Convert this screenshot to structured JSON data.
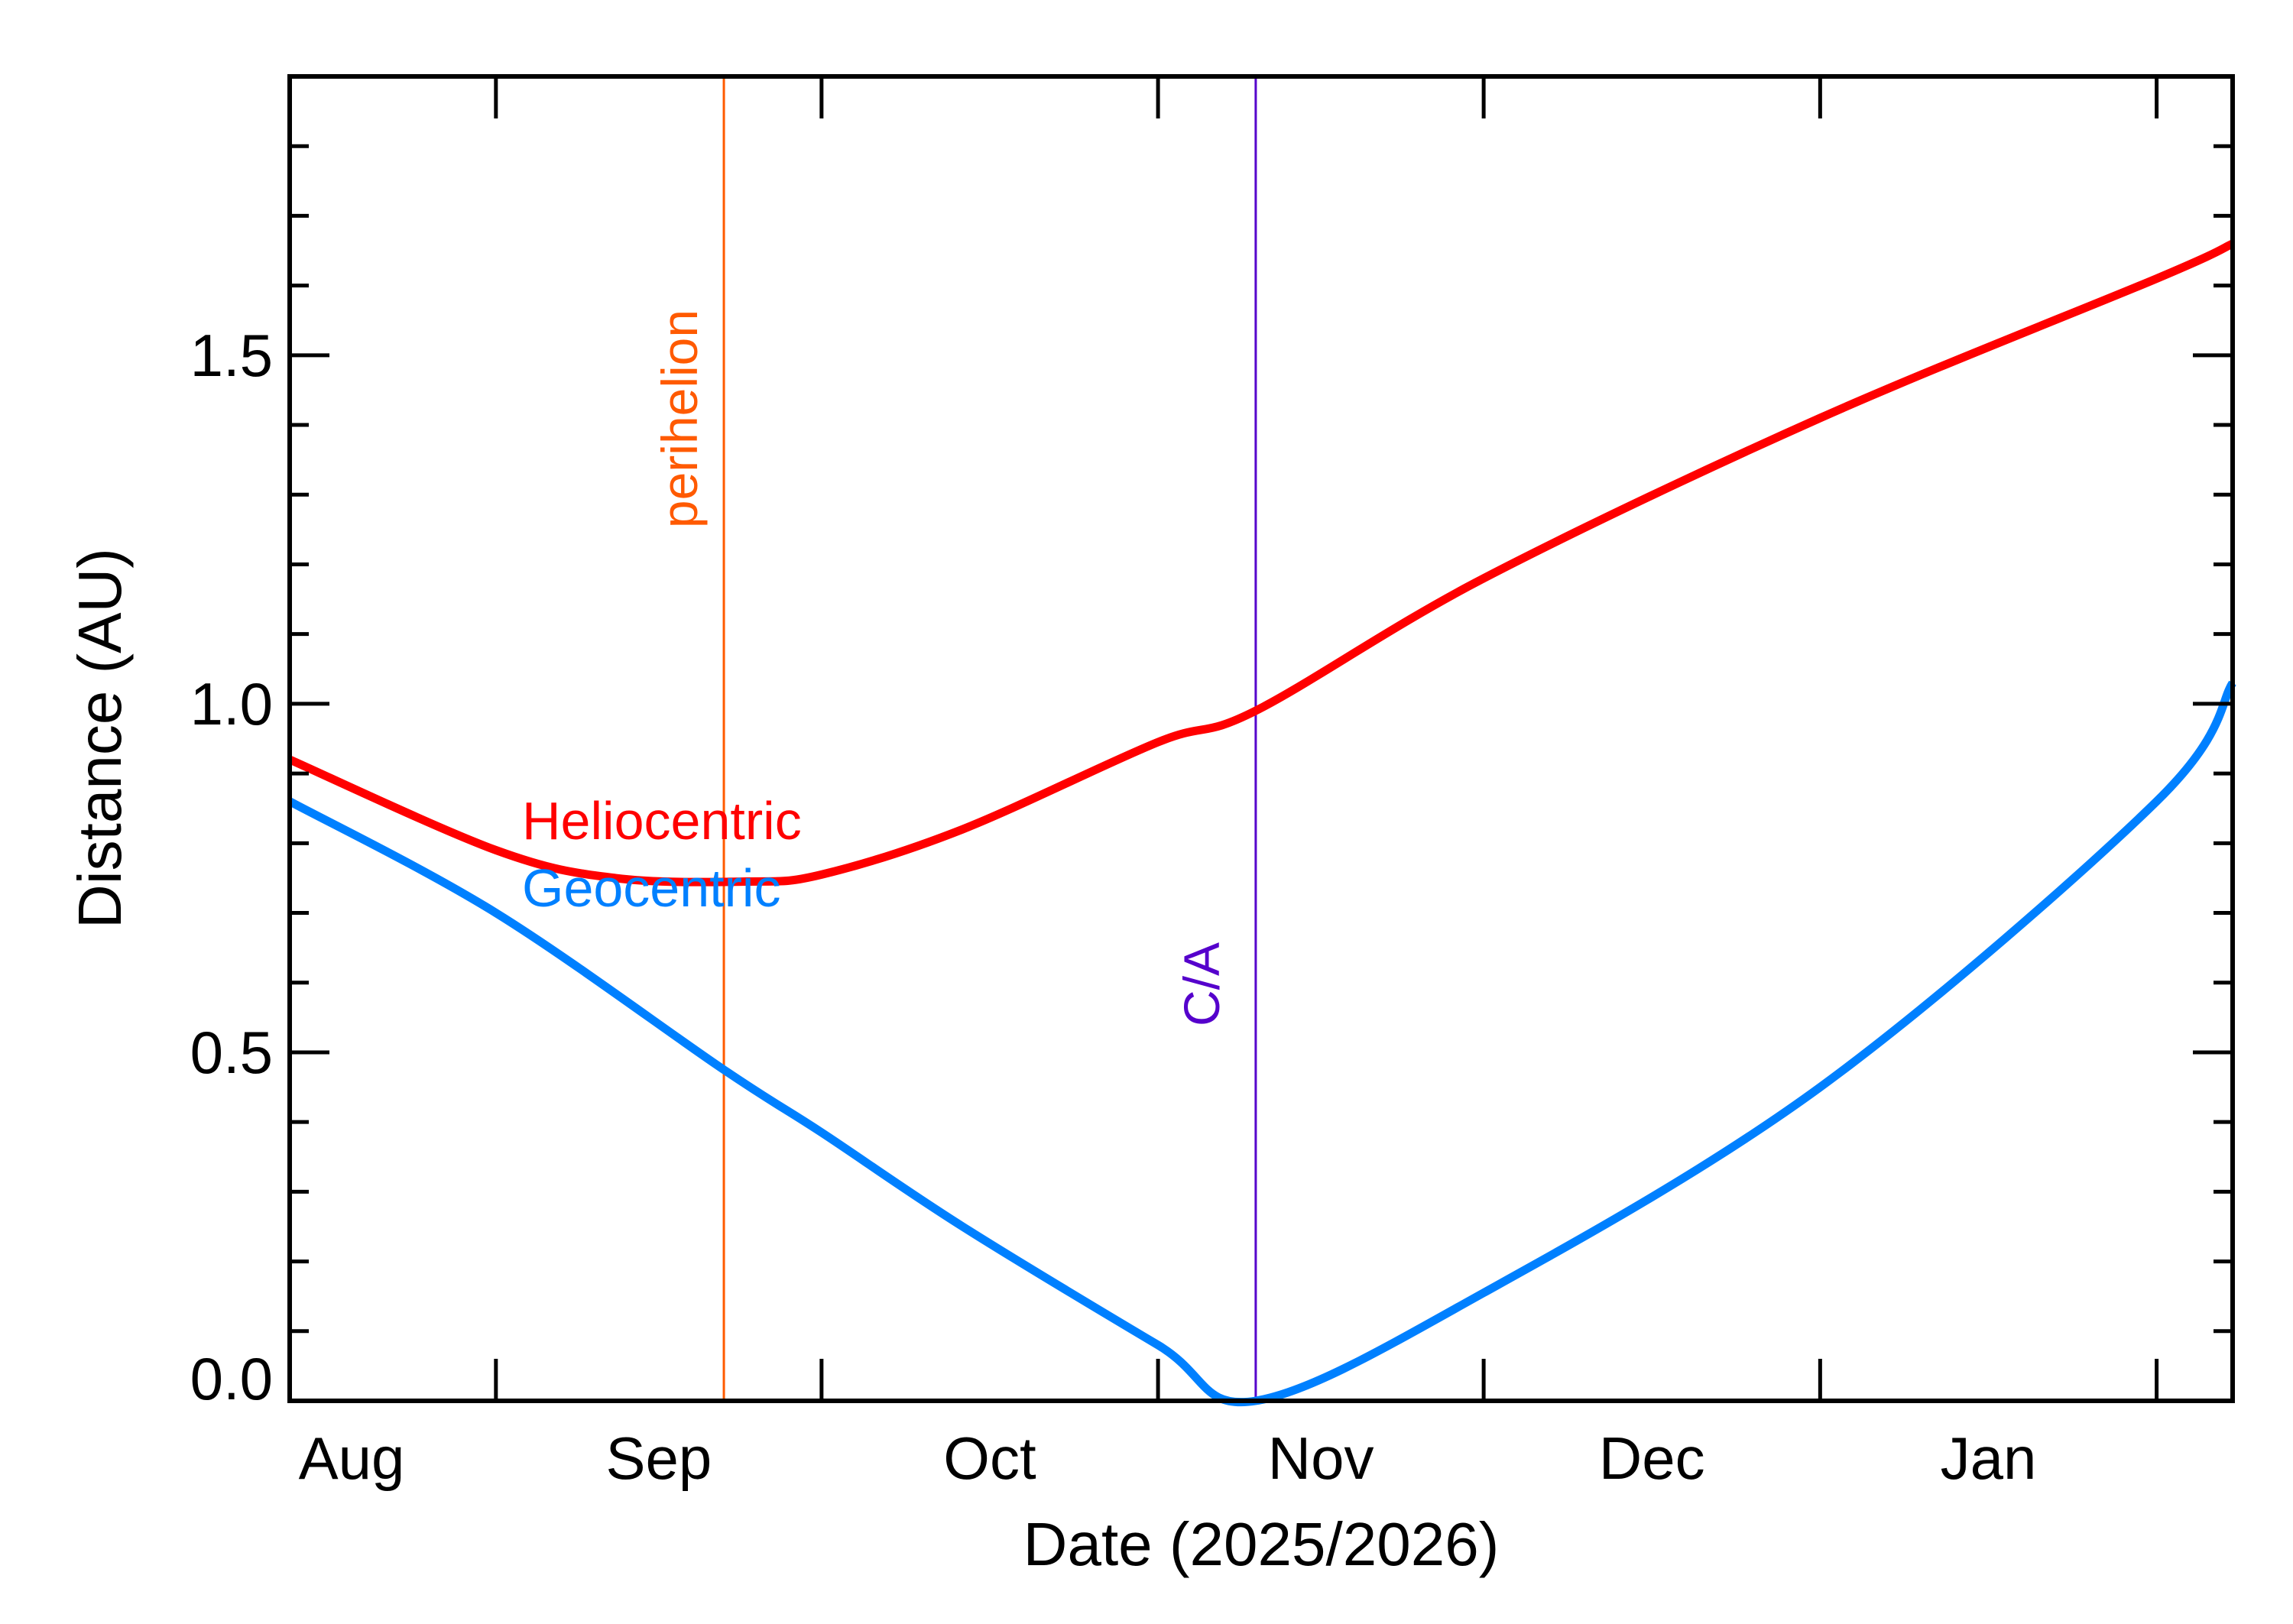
{
  "chart_data": {
    "type": "line",
    "title": "",
    "xlabel": "Date (2025/2026)",
    "ylabel": "Distance (AU)",
    "xlim": [
      "2025-08-13",
      "2026-02-08"
    ],
    "ylim": [
      0,
      1.9
    ],
    "grid": false,
    "x_tick_labels": [
      "Aug",
      "Sep",
      "Oct",
      "Nov",
      "Dec",
      "Jan"
    ],
    "x_major_ticks": [
      "2025-09-01",
      "2025-10-01",
      "2025-11-01",
      "2025-12-01",
      "2026-01-01",
      "2026-02-01"
    ],
    "y_ticks": [
      0.0,
      0.5,
      1.0,
      1.5
    ],
    "y_tick_labels": [
      "0.0",
      "0.5",
      "1.0",
      "1.5"
    ],
    "y_minor_step": 0.1,
    "series": [
      {
        "name": "Heliocentric",
        "color": "#FF0000",
        "points": [
          [
            "2025-08-13",
            0.92
          ],
          [
            "2025-09-01",
            0.79
          ],
          [
            "2025-09-12",
            0.75
          ],
          [
            "2025-09-24",
            0.745
          ],
          [
            "2025-10-01",
            0.755
          ],
          [
            "2025-10-14",
            0.82
          ],
          [
            "2025-11-01",
            0.945
          ],
          [
            "2025-11-10",
            0.99
          ],
          [
            "2025-12-01",
            1.18
          ],
          [
            "2026-01-01",
            1.41
          ],
          [
            "2026-02-01",
            1.61
          ],
          [
            "2026-02-08",
            1.66
          ]
        ]
      },
      {
        "name": "Geocentric",
        "color": "#0080FF",
        "points": [
          [
            "2025-08-13",
            0.86
          ],
          [
            "2025-09-01",
            0.7
          ],
          [
            "2025-09-22",
            0.475
          ],
          [
            "2025-10-01",
            0.385
          ],
          [
            "2025-10-14",
            0.25
          ],
          [
            "2025-11-01",
            0.08
          ],
          [
            "2025-11-10",
            0.0
          ],
          [
            "2025-12-01",
            0.155
          ],
          [
            "2026-01-01",
            0.45
          ],
          [
            "2026-02-01",
            0.86
          ],
          [
            "2026-02-08",
            1.03
          ]
        ]
      }
    ],
    "annotations": [
      {
        "label": "perihelion",
        "date": "2025-09-22",
        "color": "#FF5A00"
      },
      {
        "label": "C/A",
        "date": "2025-11-10",
        "color": "#5500CC"
      }
    ]
  }
}
